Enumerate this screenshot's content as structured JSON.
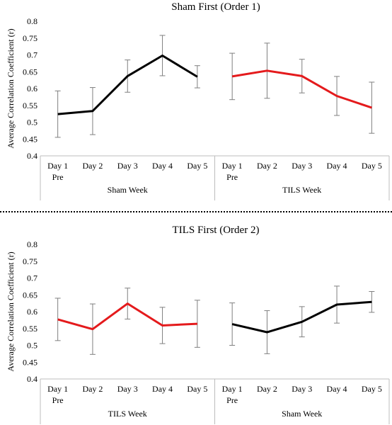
{
  "chart_data": [
    {
      "type": "line",
      "title": "Sham First (Order 1)",
      "ylabel": "Average Correlation Coefficient (r)",
      "ylim": [
        0.4,
        0.8
      ],
      "yticks": [
        "0.4",
        "0.45",
        "0.5",
        "0.55",
        "0.6",
        "0.65",
        "0.7",
        "0.75",
        "0.8"
      ],
      "groups": [
        {
          "label": "Sham Week",
          "color": "#000000",
          "categories": [
            [
              "Day 1",
              "Pre"
            ],
            [
              "Day 2"
            ],
            [
              "Day 3"
            ],
            [
              "Day 4"
            ],
            [
              "Day 5"
            ]
          ],
          "values": [
            0.524,
            0.533,
            0.637,
            0.698,
            0.635
          ],
          "errors": [
            0.069,
            0.07,
            0.048,
            0.06,
            0.033
          ]
        },
        {
          "label": "TILS Week",
          "color": "#e41a1c",
          "categories": [
            [
              "Day 1",
              "Pre"
            ],
            [
              "Day 2"
            ],
            [
              "Day 3"
            ],
            [
              "Day 4"
            ],
            [
              "Day 5"
            ]
          ],
          "values": [
            0.636,
            0.653,
            0.637,
            0.578,
            0.543
          ],
          "errors": [
            0.069,
            0.082,
            0.05,
            0.058,
            0.076
          ]
        }
      ],
      "grid": false,
      "legend": "none"
    },
    {
      "type": "line",
      "title": "TILS First (Order 2)",
      "ylabel": "Average Correlation Coefficient (r)",
      "ylim": [
        0.4,
        0.8
      ],
      "yticks": [
        "0.4",
        "0.45",
        "0.5",
        "0.55",
        "0.6",
        "0.65",
        "0.7",
        "0.75",
        "0.8"
      ],
      "groups": [
        {
          "label": "TILS Week",
          "color": "#e41a1c",
          "categories": [
            [
              "Day 1",
              "Pre"
            ],
            [
              "Day 2"
            ],
            [
              "Day 3"
            ],
            [
              "Day 4"
            ],
            [
              "Day 5"
            ]
          ],
          "values": [
            0.577,
            0.548,
            0.624,
            0.559,
            0.564
          ],
          "errors": [
            0.063,
            0.075,
            0.046,
            0.054,
            0.07
          ]
        },
        {
          "label": "Sham Week",
          "color": "#000000",
          "categories": [
            [
              "Day 1",
              "Pre"
            ],
            [
              "Day 2"
            ],
            [
              "Day 3"
            ],
            [
              "Day 4"
            ],
            [
              "Day 5"
            ]
          ],
          "values": [
            0.563,
            0.539,
            0.57,
            0.621,
            0.629
          ],
          "errors": [
            0.063,
            0.064,
            0.045,
            0.055,
            0.031
          ]
        }
      ],
      "grid": false,
      "legend": "none"
    }
  ]
}
